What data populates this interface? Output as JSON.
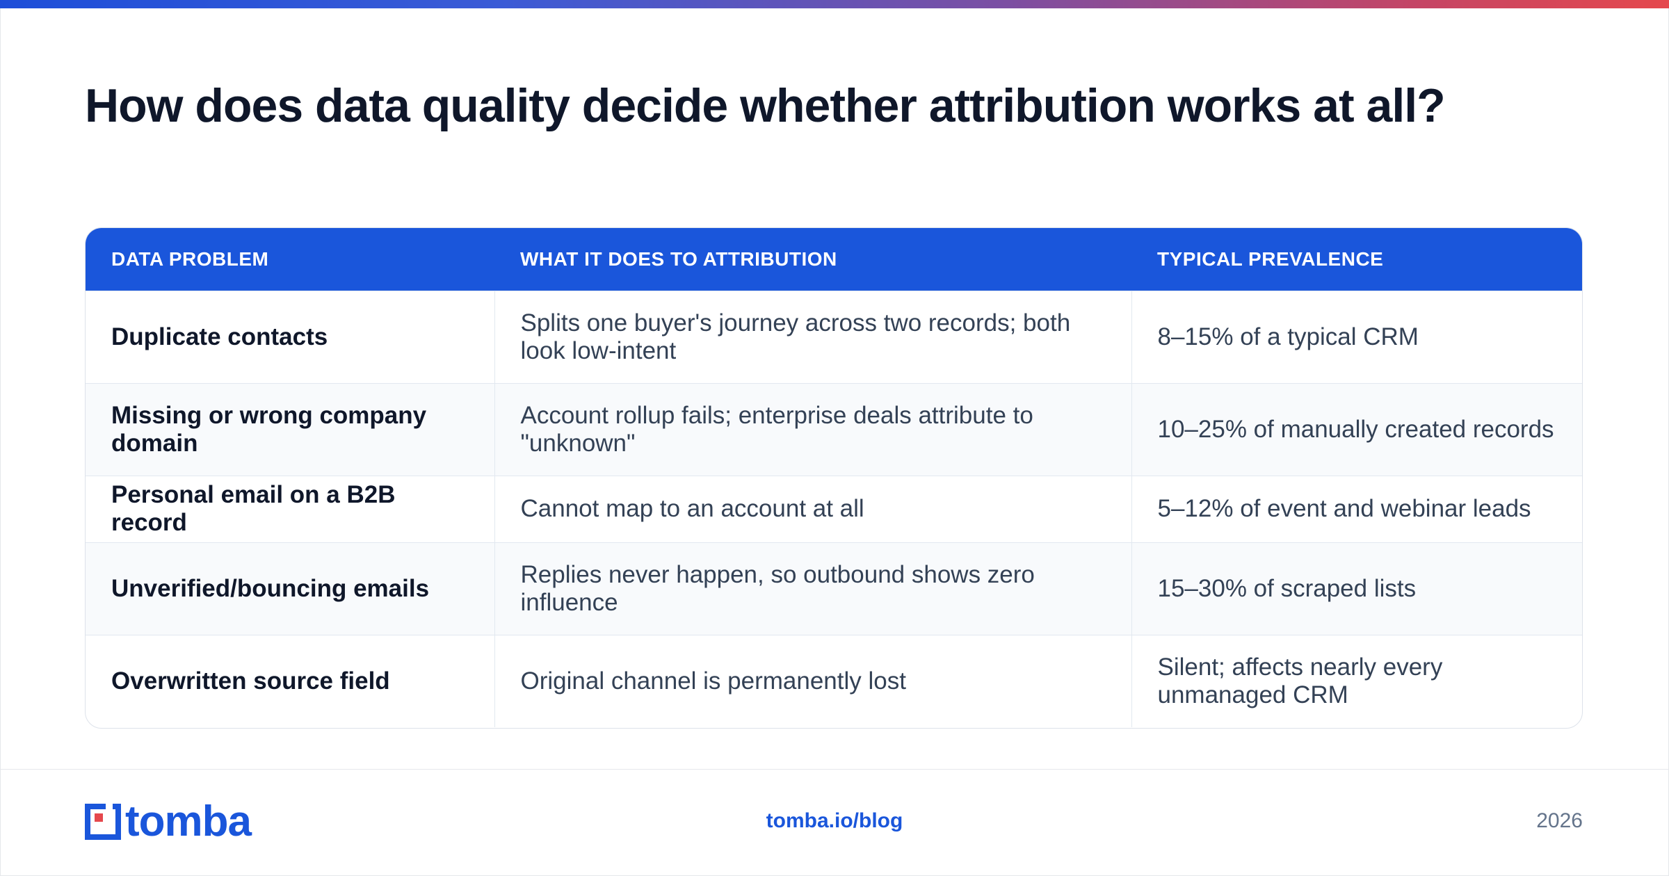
{
  "title": "How does data quality decide whether attribution works at all?",
  "table": {
    "headers": [
      "DATA PROBLEM",
      "WHAT IT DOES TO ATTRIBUTION",
      "TYPICAL PREVALENCE"
    ],
    "rows": [
      {
        "problem": "Duplicate contacts",
        "effect": "Splits one buyer's journey across two records; both look low-intent",
        "prevalence": "8–15% of a typical CRM"
      },
      {
        "problem": "Missing or wrong company domain",
        "effect": "Account rollup fails; enterprise deals attribute to \"unknown\"",
        "prevalence": "10–25% of manually created records"
      },
      {
        "problem": "Personal email on a B2B record",
        "effect": "Cannot map to an account at all",
        "prevalence": "5–12% of event and webinar leads"
      },
      {
        "problem": "Unverified/bouncing emails",
        "effect": "Replies never happen, so outbound shows zero influence",
        "prevalence": "15–30% of scraped lists"
      },
      {
        "problem": "Overwritten source field",
        "effect": "Original channel is permanently lost",
        "prevalence": "Silent; affects nearly every unmanaged CRM"
      }
    ]
  },
  "footer": {
    "logo_text": "tomba",
    "url": "tomba.io/blog",
    "year": "2026"
  },
  "colors": {
    "accent": "#1a56db",
    "logo_red": "#e5484d"
  }
}
